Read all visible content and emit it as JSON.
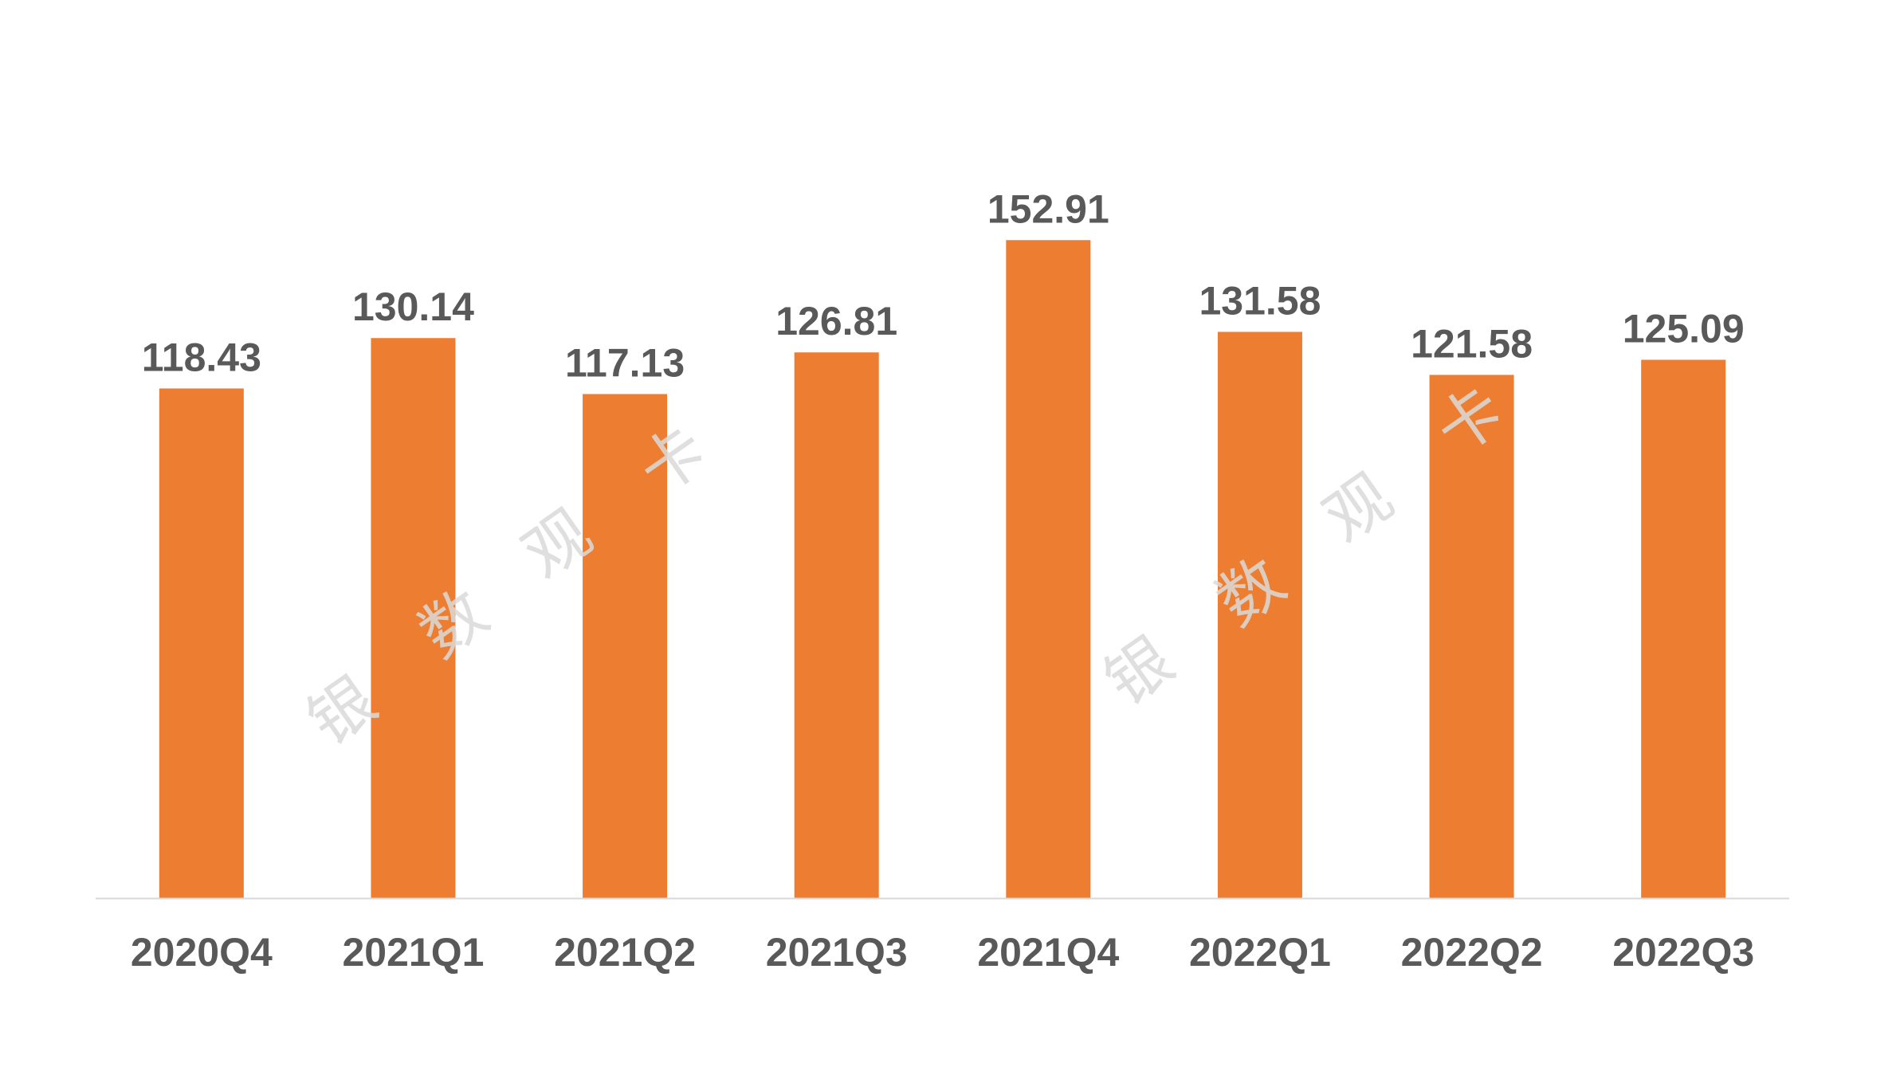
{
  "chart_data": {
    "type": "bar",
    "categories": [
      "2020Q4",
      "2021Q1",
      "2021Q2",
      "2021Q3",
      "2021Q4",
      "2022Q1",
      "2022Q2",
      "2022Q3"
    ],
    "values": [
      118.43,
      130.14,
      117.13,
      126.81,
      152.91,
      131.58,
      121.58,
      125.09
    ],
    "value_labels": [
      "118.43",
      "130.14",
      "117.13",
      "126.81",
      "152.91",
      "131.58",
      "121.58",
      "125.09"
    ],
    "title": "",
    "xlabel": "",
    "ylabel": "",
    "ylim": [
      0,
      166
    ],
    "grid": false,
    "legend": "none",
    "bar_color": "#ED7D31",
    "label_color": "#595959",
    "axis_color": "#D9D9D9"
  },
  "watermark": {
    "chars": [
      "银",
      "数",
      "观",
      "卡"
    ],
    "color": "#D9D9D9"
  }
}
